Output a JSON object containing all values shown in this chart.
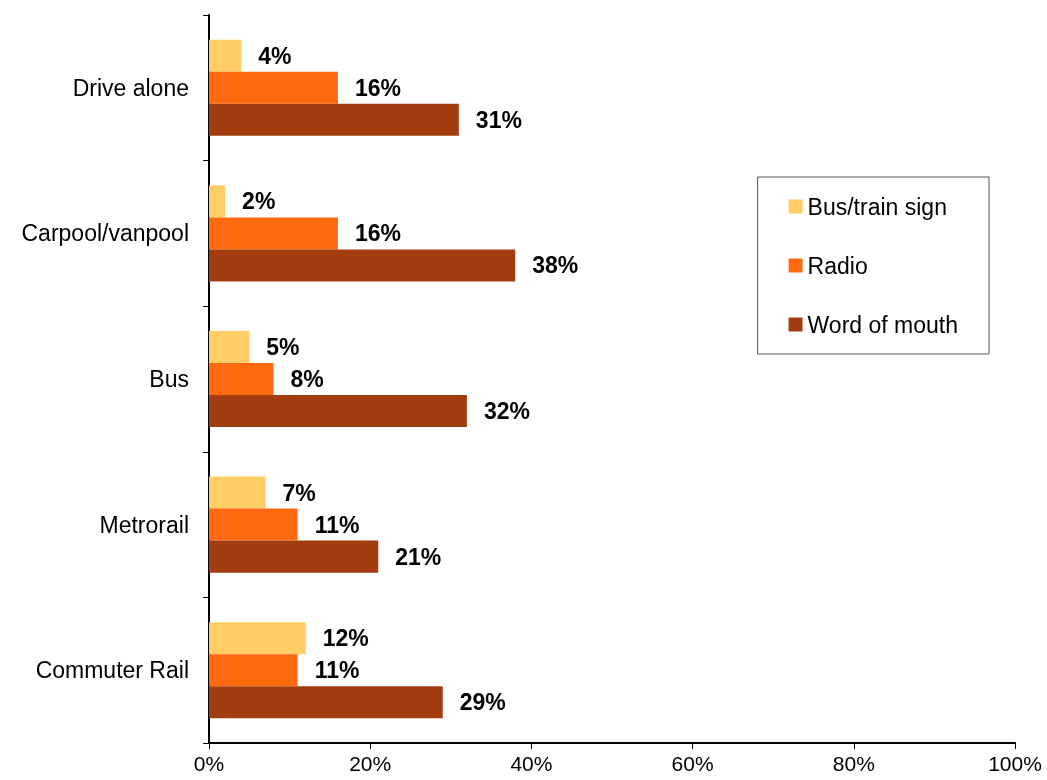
{
  "chart_data": {
    "type": "bar",
    "orientation": "horizontal",
    "categories": [
      "Drive alone",
      "Carpool/vanpool",
      "Bus",
      "Metrorail",
      "Commuter Rail"
    ],
    "series": [
      {
        "name": "Bus/train sign",
        "color": "#ffcc66",
        "values": [
          4,
          2,
          5,
          7,
          12
        ],
        "value_labels": [
          "4%",
          "2%",
          "5%",
          "7%",
          "12%"
        ]
      },
      {
        "name": "Radio",
        "color": "#ff6a10",
        "values": [
          16,
          16,
          8,
          11,
          11
        ],
        "value_labels": [
          "16%",
          "16%",
          "8%",
          "11%",
          "11%"
        ]
      },
      {
        "name": "Word of mouth",
        "color": "#a33c0e",
        "values": [
          31,
          38,
          32,
          21,
          29
        ],
        "value_labels": [
          "31%",
          "38%",
          "32%",
          "21%",
          "29%"
        ]
      }
    ],
    "xlim": [
      0,
      100
    ],
    "xticks": [
      {
        "value": 0,
        "label": "0%"
      },
      {
        "value": 20,
        "label": "20%"
      },
      {
        "value": 40,
        "label": "40%"
      },
      {
        "value": 60,
        "label": "60%"
      },
      {
        "value": 80,
        "label": "80%"
      },
      {
        "value": 100,
        "label": "100%"
      }
    ],
    "grid": false,
    "legend": "right"
  }
}
